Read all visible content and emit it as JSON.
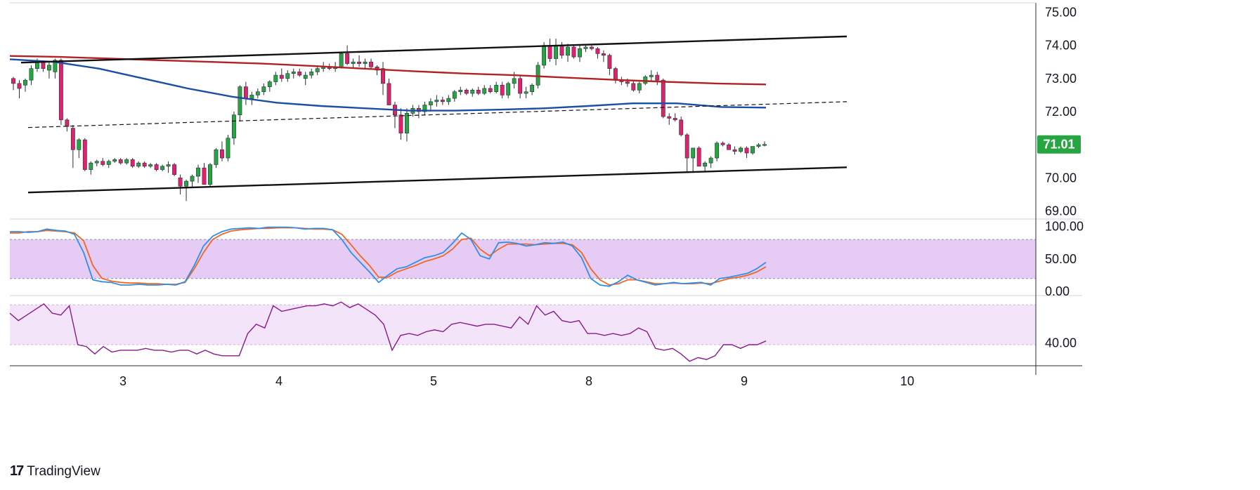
{
  "branding": {
    "logo_mark": "17",
    "logo_text": "TradingView"
  },
  "colors": {
    "bull": "#26a641",
    "bear": "#e0226e",
    "ma_red": "#b22222",
    "ma_blue": "#1a4fa3",
    "stoch_k": "#2f8fe8",
    "stoch_d": "#f26522",
    "rsi": "#8b1a8b",
    "stoch_band": "#e6ccf5",
    "rsi_band": "#f3e4fa",
    "price_badge": "#26a641"
  },
  "price_axis": {
    "ticks": [
      "75.00",
      "74.00",
      "73.00",
      "72.00",
      "71.00",
      "70.00",
      "69.00"
    ],
    "current": "71.01"
  },
  "stoch_axis": {
    "ticks": [
      "100.00",
      "50.00",
      "0.00"
    ]
  },
  "rsi_axis": {
    "ticks": [
      "40.00"
    ]
  },
  "time_axis": {
    "labels": [
      "3",
      "4",
      "5",
      "8",
      "9",
      "10"
    ]
  },
  "chart_data": [
    {
      "type": "candlestick",
      "title": "",
      "ylim": [
        68.8,
        75.2
      ],
      "x_ticks": [
        "3",
        "4",
        "5",
        "8",
        "9",
        "10"
      ],
      "candles": [
        [
          73.0,
          73.05,
          72.65,
          72.85
        ],
        [
          72.85,
          72.95,
          72.4,
          72.7
        ],
        [
          72.8,
          73.0,
          72.6,
          72.95
        ],
        [
          72.95,
          73.4,
          72.8,
          73.3
        ],
        [
          73.3,
          73.6,
          73.2,
          73.5
        ],
        [
          73.5,
          73.55,
          73.2,
          73.3
        ],
        [
          73.25,
          73.5,
          73.0,
          73.4
        ],
        [
          73.2,
          73.6,
          73.0,
          73.55
        ],
        [
          73.55,
          73.6,
          71.6,
          71.75
        ],
        [
          71.75,
          71.8,
          71.4,
          71.55
        ],
        [
          71.5,
          71.6,
          70.3,
          70.85
        ],
        [
          70.85,
          71.2,
          70.6,
          71.15
        ],
        [
          71.15,
          71.2,
          70.2,
          70.25
        ],
        [
          70.25,
          70.5,
          70.1,
          70.45
        ],
        [
          70.45,
          70.55,
          70.35,
          70.5
        ],
        [
          70.5,
          70.6,
          70.35,
          70.4
        ],
        [
          70.4,
          70.55,
          70.3,
          70.5
        ],
        [
          70.5,
          70.6,
          70.45,
          70.55
        ],
        [
          70.55,
          70.6,
          70.4,
          70.45
        ],
        [
          70.45,
          70.6,
          70.4,
          70.55
        ],
        [
          70.55,
          70.6,
          70.3,
          70.35
        ],
        [
          70.35,
          70.5,
          70.3,
          70.45
        ],
        [
          70.45,
          70.5,
          70.3,
          70.35
        ],
        [
          70.35,
          70.45,
          70.3,
          70.4
        ],
        [
          70.4,
          70.45,
          70.2,
          70.25
        ],
        [
          70.25,
          70.4,
          70.2,
          70.35
        ],
        [
          70.35,
          70.5,
          70.15,
          70.4
        ],
        [
          70.4,
          70.45,
          70.05,
          70.1
        ],
        [
          70.0,
          70.1,
          69.5,
          69.75
        ],
        [
          69.75,
          69.95,
          69.3,
          69.9
        ],
        [
          69.9,
          70.1,
          69.7,
          70.05
        ],
        [
          70.05,
          70.4,
          69.85,
          70.3
        ],
        [
          70.3,
          70.45,
          69.8,
          69.8
        ],
        [
          69.8,
          70.45,
          69.75,
          70.4
        ],
        [
          70.4,
          70.9,
          70.3,
          70.85
        ],
        [
          70.85,
          71.1,
          70.5,
          70.6
        ],
        [
          70.6,
          71.3,
          70.5,
          71.2
        ],
        [
          71.2,
          72.0,
          71.0,
          71.9
        ],
        [
          71.9,
          72.8,
          71.7,
          72.75
        ],
        [
          72.75,
          72.9,
          72.2,
          72.4
        ],
        [
          72.4,
          72.6,
          72.2,
          72.5
        ],
        [
          72.5,
          72.7,
          72.4,
          72.6
        ],
        [
          72.6,
          72.85,
          72.5,
          72.75
        ],
        [
          72.75,
          72.95,
          72.6,
          72.9
        ],
        [
          72.9,
          73.2,
          72.8,
          73.1
        ],
        [
          73.1,
          73.3,
          72.9,
          73.0
        ],
        [
          73.0,
          73.25,
          72.9,
          73.15
        ],
        [
          73.15,
          73.3,
          73.0,
          73.2
        ],
        [
          73.2,
          73.3,
          73.05,
          73.1
        ],
        [
          73.0,
          73.2,
          72.8,
          73.1
        ],
        [
          73.1,
          73.3,
          73.0,
          73.2
        ],
        [
          73.2,
          73.4,
          73.1,
          73.3
        ],
        [
          73.3,
          73.5,
          73.2,
          73.35
        ],
        [
          73.35,
          73.45,
          73.25,
          73.3
        ],
        [
          73.3,
          73.5,
          73.2,
          73.35
        ],
        [
          73.35,
          73.8,
          73.3,
          73.75
        ],
        [
          73.75,
          74.0,
          73.4,
          73.45
        ],
        [
          73.45,
          73.6,
          73.3,
          73.5
        ],
        [
          73.5,
          73.7,
          73.35,
          73.45
        ],
        [
          73.45,
          73.6,
          73.3,
          73.5
        ],
        [
          73.5,
          73.6,
          73.3,
          73.35
        ],
        [
          73.35,
          73.4,
          73.1,
          73.25
        ],
        [
          73.3,
          73.5,
          72.5,
          72.85
        ],
        [
          72.85,
          73.0,
          72.2,
          72.2
        ],
        [
          72.2,
          72.3,
          71.5,
          71.9
        ],
        [
          71.9,
          72.1,
          71.15,
          71.35
        ],
        [
          71.35,
          72.1,
          71.1,
          71.95
        ],
        [
          71.95,
          72.2,
          71.85,
          72.1
        ],
        [
          72.1,
          72.2,
          71.8,
          72.0
        ],
        [
          72.0,
          72.3,
          71.9,
          72.2
        ],
        [
          72.2,
          72.4,
          72.0,
          72.3
        ],
        [
          72.3,
          72.5,
          72.15,
          72.35
        ],
        [
          72.35,
          72.45,
          72.2,
          72.3
        ],
        [
          72.3,
          72.5,
          72.2,
          72.4
        ],
        [
          72.4,
          72.65,
          72.3,
          72.6
        ],
        [
          72.6,
          72.75,
          72.5,
          72.65
        ],
        [
          72.65,
          72.7,
          72.5,
          72.55
        ],
        [
          72.55,
          72.7,
          72.45,
          72.65
        ],
        [
          72.65,
          72.75,
          72.5,
          72.55
        ],
        [
          72.55,
          72.8,
          72.5,
          72.7
        ],
        [
          72.7,
          72.8,
          72.55,
          72.6
        ],
        [
          72.6,
          72.9,
          72.55,
          72.8
        ],
        [
          72.8,
          72.9,
          72.4,
          72.5
        ],
        [
          72.5,
          72.9,
          72.4,
          72.85
        ],
        [
          72.85,
          73.2,
          72.7,
          73.0
        ],
        [
          73.0,
          73.1,
          72.4,
          72.55
        ],
        [
          72.55,
          72.75,
          72.4,
          72.6
        ],
        [
          72.6,
          72.85,
          72.5,
          72.8
        ],
        [
          72.8,
          73.5,
          72.7,
          73.4
        ],
        [
          73.4,
          74.1,
          73.3,
          74.0
        ],
        [
          74.0,
          74.2,
          73.5,
          73.6
        ],
        [
          73.6,
          74.2,
          73.4,
          74.0
        ],
        [
          74.0,
          74.1,
          73.6,
          73.7
        ],
        [
          73.7,
          74.05,
          73.5,
          73.95
        ],
        [
          73.95,
          74.0,
          73.6,
          73.65
        ],
        [
          73.65,
          74.0,
          73.5,
          73.9
        ],
        [
          73.9,
          74.0,
          73.8,
          73.95
        ],
        [
          73.95,
          74.0,
          73.85,
          73.9
        ],
        [
          73.9,
          73.95,
          73.6,
          73.75
        ],
        [
          73.75,
          73.85,
          73.5,
          73.7
        ],
        [
          73.7,
          73.75,
          73.1,
          73.3
        ],
        [
          73.3,
          73.35,
          72.85,
          72.95
        ],
        [
          72.95,
          73.05,
          72.8,
          72.9
        ],
        [
          72.9,
          73.0,
          72.75,
          72.85
        ],
        [
          72.85,
          72.95,
          72.6,
          72.65
        ],
        [
          72.65,
          72.9,
          72.55,
          72.85
        ],
        [
          72.85,
          73.1,
          72.8,
          73.05
        ],
        [
          73.05,
          73.25,
          72.9,
          73.1
        ],
        [
          73.1,
          73.2,
          72.8,
          72.95
        ],
        [
          72.95,
          73.0,
          71.8,
          71.85
        ],
        [
          71.85,
          71.95,
          71.6,
          71.8
        ],
        [
          71.8,
          71.95,
          71.7,
          71.75
        ],
        [
          71.75,
          71.85,
          71.25,
          71.3
        ],
        [
          71.3,
          71.35,
          70.15,
          70.6
        ],
        [
          70.6,
          70.9,
          70.15,
          70.9
        ],
        [
          70.9,
          70.95,
          70.35,
          70.35
        ],
        [
          70.35,
          70.5,
          70.2,
          70.45
        ],
        [
          70.45,
          70.65,
          70.3,
          70.6
        ],
        [
          70.6,
          71.1,
          70.5,
          71.05
        ],
        [
          71.05,
          71.1,
          70.95,
          71.0
        ],
        [
          71.0,
          71.05,
          70.85,
          70.85
        ],
        [
          70.85,
          70.95,
          70.7,
          70.8
        ],
        [
          70.8,
          70.95,
          70.75,
          70.9
        ],
        [
          70.9,
          70.95,
          70.6,
          70.75
        ],
        [
          70.75,
          70.95,
          70.7,
          70.95
        ],
        [
          70.95,
          71.05,
          70.9,
          71.0
        ],
        [
          71.0,
          71.1,
          70.95,
          71.01
        ]
      ],
      "ma_red": [
        73.68,
        73.65,
        73.6,
        73.55,
        73.5,
        73.45,
        73.38,
        73.3,
        73.22,
        73.15,
        73.1,
        73.03,
        72.96,
        72.9,
        72.85,
        72.82
      ],
      "ma_blue": [
        73.58,
        73.5,
        73.3,
        73.0,
        72.7,
        72.45,
        72.27,
        72.17,
        72.1,
        72.03,
        72.03,
        72.06,
        72.1,
        72.17,
        72.25,
        72.25,
        72.14,
        72.12
      ],
      "channel_upper": [
        [
          30,
          73.48
        ],
        [
          1205,
          74.27
        ]
      ],
      "channel_lower": [
        [
          40,
          69.56
        ],
        [
          1205,
          70.32
        ]
      ],
      "channel_mid": [
        [
          40,
          71.52
        ],
        [
          1205,
          72.3
        ]
      ]
    },
    {
      "type": "line",
      "title": "",
      "ylim": [
        0,
        100
      ],
      "series": [
        {
          "values": [
            92,
            92,
            91,
            92,
            96,
            94,
            93,
            88,
            60,
            18,
            15,
            14,
            10,
            10,
            11,
            10,
            10,
            11,
            10,
            15,
            40,
            70,
            85,
            92,
            96,
            97,
            98,
            97,
            99,
            99,
            99,
            98,
            96,
            97,
            97,
            95,
            80,
            60,
            45,
            30,
            14,
            25,
            35,
            38,
            45,
            52,
            55,
            60,
            74,
            90,
            80,
            55,
            50,
            75,
            76,
            74,
            70,
            72,
            75,
            74,
            76,
            70,
            52,
            20,
            10,
            8,
            15,
            25,
            18,
            14,
            10,
            12,
            14,
            12,
            13,
            14,
            10,
            20,
            22,
            25,
            28,
            35,
            45
          ]
        },
        {
          "values": [
            90,
            90,
            92,
            92,
            94,
            93,
            92,
            90,
            78,
            40,
            20,
            16,
            14,
            13,
            13,
            12,
            12,
            11,
            11,
            14,
            35,
            60,
            80,
            88,
            93,
            95,
            96,
            97,
            97,
            98,
            98,
            98,
            97,
            96,
            96,
            95,
            88,
            72,
            55,
            40,
            22,
            22,
            30,
            35,
            40,
            46,
            50,
            55,
            65,
            80,
            82,
            65,
            55,
            65,
            73,
            73,
            73,
            72,
            73,
            74,
            74,
            72,
            60,
            35,
            18,
            10,
            12,
            18,
            18,
            15,
            12,
            12,
            13,
            12,
            12,
            13,
            12,
            16,
            20,
            22,
            25,
            30,
            38
          ]
        }
      ]
    },
    {
      "type": "line",
      "title": "",
      "ylim": [
        28,
        64
      ],
      "series": [
        {
          "values": [
            56,
            52,
            55,
            58,
            61,
            56,
            55,
            60,
            39,
            38,
            34,
            38,
            35,
            36,
            36,
            36,
            37,
            36,
            36,
            35,
            36,
            36,
            34,
            36,
            34,
            33,
            33,
            33,
            45,
            50,
            48,
            60,
            57,
            58,
            59,
            60,
            60,
            61,
            60,
            62,
            59,
            61,
            58,
            55,
            50,
            36,
            44,
            45,
            44,
            46,
            47,
            46,
            50,
            51,
            50,
            49,
            50,
            50,
            49,
            48,
            54,
            50,
            60,
            55,
            57,
            52,
            51,
            52,
            45,
            45,
            44,
            45,
            44,
            45,
            48,
            46,
            37,
            36,
            37,
            34,
            30,
            32,
            31,
            33,
            39,
            39,
            37,
            39,
            39,
            41
          ]
        }
      ]
    }
  ]
}
